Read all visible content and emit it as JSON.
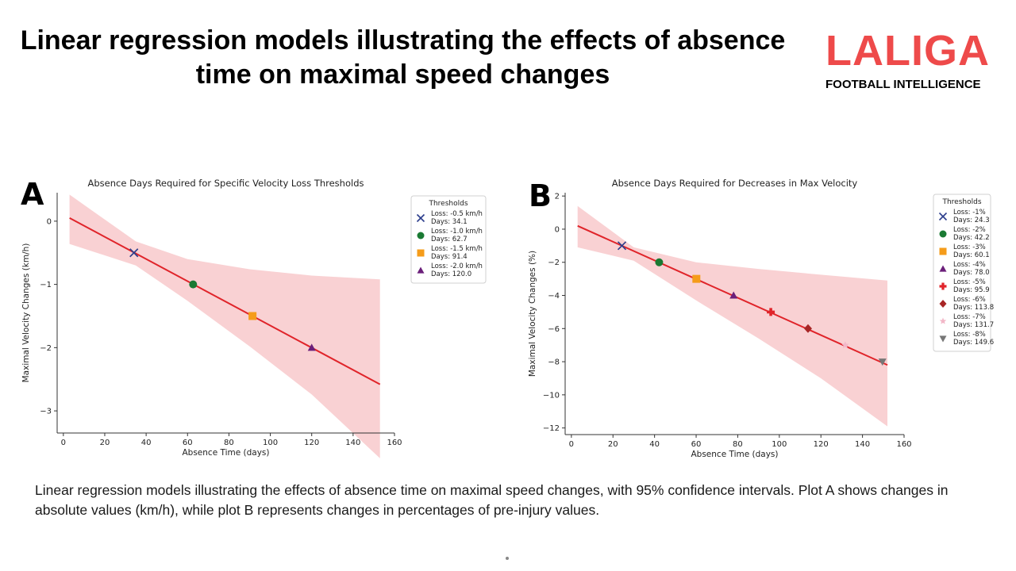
{
  "slide": {
    "title": "Linear regression models illustrating the effects of absence time on maximal speed changes",
    "caption": "Linear regression models illustrating the effects of absence time on maximal speed changes, with 95% confidence intervals. Plot A shows changes in absolute values (km/h), while plot B represents changes in percentages of pre-injury values."
  },
  "logo": {
    "main": "LALIGA",
    "sub": "FOOTBALL INTELLIGENCE",
    "color": "#ee4a4a"
  },
  "chart_data": [
    {
      "panel": "A",
      "type": "line",
      "title": "Absence Days Required for Specific Velocity Loss Thresholds",
      "xlabel": "Absence Time (days)",
      "ylabel": "Maximal Velocity Changes (km/h)",
      "xlim": [
        -3,
        160
      ],
      "ylim": [
        -3.35,
        0.45
      ],
      "xticks": [
        0,
        20,
        40,
        60,
        80,
        100,
        120,
        140,
        160
      ],
      "yticks": [
        0,
        -1,
        -2,
        -3
      ],
      "grid": false,
      "regression": {
        "x": [
          3,
          153
        ],
        "y": [
          0.05,
          -2.58
        ],
        "color": "#e0242a"
      },
      "ci_band": {
        "color": "#f7c1c4",
        "x": [
          3,
          35,
          60,
          90,
          120,
          153
        ],
        "upper": [
          0.42,
          -0.32,
          -0.6,
          -0.76,
          -0.86,
          -0.92
        ],
        "lower": [
          -0.36,
          -0.7,
          -1.26,
          -1.98,
          -2.74,
          -3.75
        ]
      },
      "legend": {
        "title": "Thresholds",
        "position": "right",
        "entries": [
          {
            "marker": "x",
            "color": "#2c3e8c",
            "label": "Loss: -0.5 km/h\nDays: 34.1",
            "x": 34.1,
            "y": -0.5
          },
          {
            "marker": "circle",
            "color": "#1a7a33",
            "label": "Loss: -1.0 km/h\nDays: 62.7",
            "x": 62.7,
            "y": -1.0
          },
          {
            "marker": "square",
            "color": "#f59c1a",
            "label": "Loss: -1.5 km/h\nDays: 91.4",
            "x": 91.4,
            "y": -1.5
          },
          {
            "marker": "triangle-up",
            "color": "#6b1f7a",
            "label": "Loss: -2.0 km/h\nDays: 120.0",
            "x": 120.0,
            "y": -2.0
          }
        ]
      }
    },
    {
      "panel": "B",
      "type": "line",
      "title": "Absence Days Required for Decreases in Max Velocity",
      "xlabel": "Absence Time (days)",
      "ylabel": "Maximal Velocity Changes (%)",
      "xlim": [
        -3,
        160
      ],
      "ylim": [
        -12.4,
        2.2
      ],
      "xticks": [
        0,
        20,
        40,
        60,
        80,
        100,
        120,
        140,
        160
      ],
      "yticks": [
        2,
        0,
        -2,
        -4,
        -6,
        -8,
        -10,
        -12
      ],
      "grid": false,
      "regression": {
        "x": [
          3,
          152
        ],
        "y": [
          0.2,
          -8.2
        ],
        "color": "#e0242a"
      },
      "ci_band": {
        "color": "#f7c1c4",
        "x": [
          3,
          30,
          60,
          90,
          120,
          152
        ],
        "upper": [
          1.4,
          -1.1,
          -2.0,
          -2.4,
          -2.75,
          -3.1
        ],
        "lower": [
          -1.1,
          -1.9,
          -4.3,
          -6.6,
          -9.0,
          -11.9
        ]
      },
      "legend": {
        "title": "Thresholds",
        "position": "right",
        "entries": [
          {
            "marker": "x",
            "color": "#2c3e8c",
            "label": "Loss: -1%\nDays: 24.3",
            "x": 24.3,
            "y": -1
          },
          {
            "marker": "circle",
            "color": "#1a7a33",
            "label": "Loss: -2%\nDays: 42.2",
            "x": 42.2,
            "y": -2
          },
          {
            "marker": "square",
            "color": "#f59c1a",
            "label": "Loss: -3%\nDays: 60.1",
            "x": 60.1,
            "y": -3
          },
          {
            "marker": "triangle-up",
            "color": "#6b1f7a",
            "label": "Loss: -4%\nDays: 78.0",
            "x": 78.0,
            "y": -4
          },
          {
            "marker": "plus",
            "color": "#e0242a",
            "label": "Loss: -5%\nDays: 95.9",
            "x": 95.9,
            "y": -5
          },
          {
            "marker": "diamond",
            "color": "#a82626",
            "label": "Loss: -6%\nDays: 113.8",
            "x": 113.8,
            "y": -6
          },
          {
            "marker": "star",
            "color": "#f2b8c8",
            "label": "Loss: -7%\nDays: 131.7",
            "x": 131.7,
            "y": -7
          },
          {
            "marker": "triangle-down",
            "color": "#777777",
            "label": "Loss: -8%\nDays: 149.6",
            "x": 149.6,
            "y": -8
          }
        ]
      }
    }
  ]
}
